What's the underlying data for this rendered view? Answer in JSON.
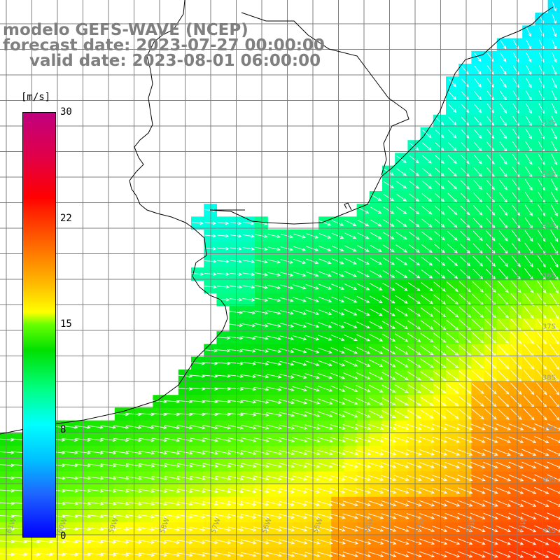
{
  "title": {
    "line1": "modelo GEFS-WAVE (NCEP)",
    "line2": "forecast date: 2023-07-27 00:00:00",
    "line3": "valid date: 2023-08-01 06:00:00"
  },
  "legend": {
    "unit": "[m/s]",
    "min": 0,
    "max": 30,
    "ticks": [
      {
        "label": "30",
        "value": 30
      },
      {
        "label": "22",
        "value": 22
      },
      {
        "label": "15",
        "value": 15
      },
      {
        "label": "8",
        "value": 8
      },
      {
        "label": "0",
        "value": 0
      }
    ],
    "colors": [
      "#0000ff",
      "#00bfff",
      "#00ffff",
      "#00e000",
      "#ffff00",
      "#ff7000",
      "#ff0000",
      "#c0007f"
    ]
  },
  "map": {
    "lat_range": [
      -41.5,
      -31
    ],
    "lon_range": [
      -62.5,
      -50.5
    ],
    "land_color": "#ffffff",
    "grid_color": "#7f7f7f",
    "arrow_color": "#ffffff",
    "lat_labels": [
      "33S",
      "34S",
      "35S",
      "36S",
      "37S",
      "38S",
      "39S",
      "40S",
      "41S"
    ],
    "lon_labels": [
      "61W",
      "60W",
      "59W",
      "58W",
      "57W",
      "56W",
      "55W",
      "54W",
      "53W",
      "52W",
      "51W"
    ]
  }
}
